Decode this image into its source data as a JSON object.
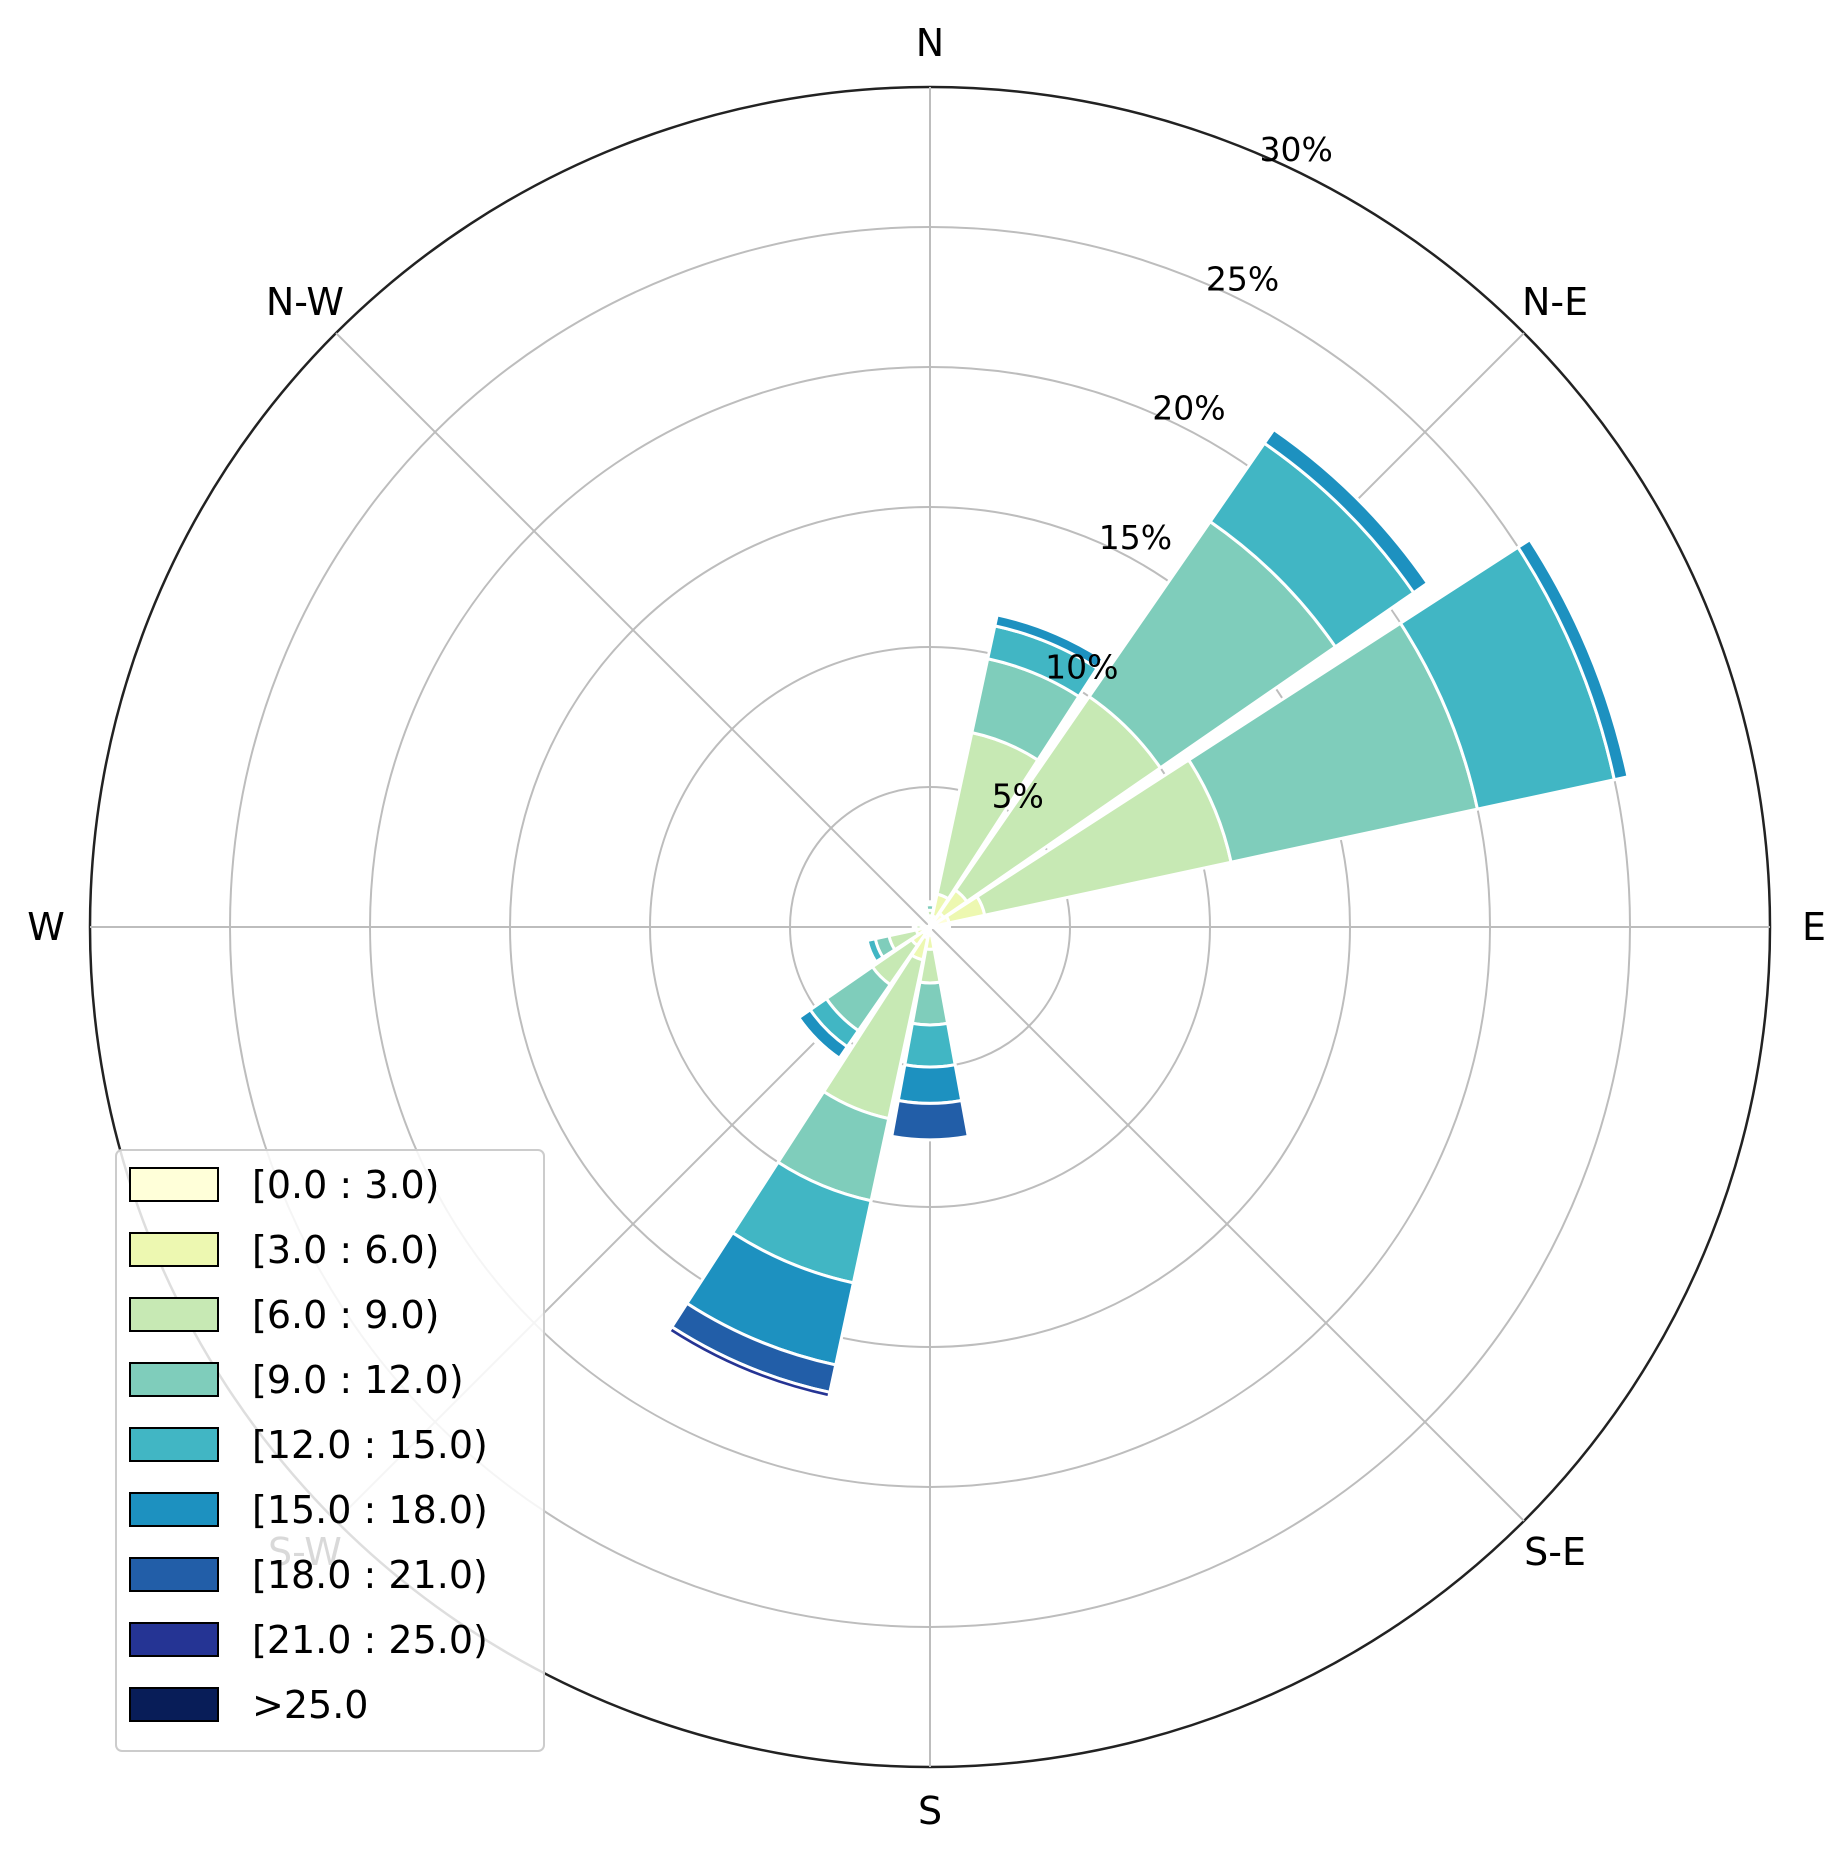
{
  "chart_data": {
    "type": "windrose",
    "radial_axis": {
      "unit": "%",
      "max": 30,
      "rings": [
        5,
        10,
        15,
        20,
        25,
        30
      ],
      "ring_labels": [
        "5%",
        "10%",
        "15%",
        "20%",
        "25%",
        "30%"
      ]
    },
    "direction_labels": [
      {
        "text": "N",
        "angle": 0
      },
      {
        "text": "N-E",
        "angle": 45
      },
      {
        "text": "E",
        "angle": 90
      },
      {
        "text": "S-E",
        "angle": 135
      },
      {
        "text": "S",
        "angle": 180
      },
      {
        "text": "S-W",
        "angle": 225
      },
      {
        "text": "W",
        "angle": 270
      },
      {
        "text": "N-W",
        "angle": 315
      }
    ],
    "legend": {
      "position": "lower-left",
      "bins": [
        {
          "label": "[0.0 : 3.0)",
          "color": "#ffffd9"
        },
        {
          "label": "[3.0 : 6.0)",
          "color": "#edf8b1"
        },
        {
          "label": "[6.0 : 9.0)",
          "color": "#c7e9b4"
        },
        {
          "label": "[9.0 : 12.0)",
          "color": "#7fcdbb"
        },
        {
          "label": "[12.0 : 15.0)",
          "color": "#41b6c4"
        },
        {
          "label": "[15.0 : 18.0)",
          "color": "#1d91c0"
        },
        {
          "label": "[18.0 : 21.0)",
          "color": "#225ea8"
        },
        {
          "label": "[21.0 : 25.0)",
          "color": "#253494"
        },
        {
          "label": ">25.0",
          "color": "#081d58"
        }
      ]
    },
    "sector_width_deg": 22.5,
    "sectors": [
      {
        "direction_deg": 0,
        "cumulative": [
          0.2,
          0.4,
          0.6,
          0.8,
          0.9,
          0.9,
          0.9,
          0.9,
          0.9
        ]
      },
      {
        "direction_deg": 22.5,
        "cumulative": [
          0.4,
          1.2,
          7.1,
          9.8,
          11.0,
          11.4,
          11.4,
          11.4,
          11.4
        ]
      },
      {
        "direction_deg": 45,
        "cumulative": [
          0.6,
          1.6,
          10.0,
          17.6,
          21.0,
          21.6,
          21.6,
          21.6,
          21.6
        ]
      },
      {
        "direction_deg": 67.5,
        "cumulative": [
          0.7,
          2.0,
          11.0,
          20.0,
          25.0,
          25.5,
          25.5,
          25.5,
          25.5
        ]
      },
      {
        "direction_deg": 90,
        "cumulative": [
          0.4,
          0.5,
          0.6,
          0.7,
          0.7,
          0.7,
          0.7,
          0.7,
          0.7
        ]
      },
      {
        "direction_deg": 112.5,
        "cumulative": [
          0,
          0,
          0,
          0,
          0,
          0,
          0,
          0,
          0
        ]
      },
      {
        "direction_deg": 135,
        "cumulative": [
          0,
          0,
          0,
          0,
          0,
          0,
          0,
          0,
          0
        ]
      },
      {
        "direction_deg": 157.5,
        "cumulative": [
          0,
          0,
          0,
          0,
          0,
          0,
          0,
          0,
          0
        ]
      },
      {
        "direction_deg": 180,
        "cumulative": [
          0.3,
          0.8,
          2.0,
          3.5,
          5.0,
          6.3,
          7.6,
          7.6,
          7.6
        ]
      },
      {
        "direction_deg": 202.5,
        "cumulative": [
          0.4,
          1.2,
          7.0,
          10.0,
          13.0,
          16.0,
          17.0,
          17.2,
          17.2
        ]
      },
      {
        "direction_deg": 225,
        "cumulative": [
          0.3,
          0.8,
          2.5,
          4.5,
          5.2,
          5.7,
          5.8,
          5.8,
          5.8
        ]
      },
      {
        "direction_deg": 247.5,
        "cumulative": [
          0.2,
          0.5,
          1.5,
          2.0,
          2.3,
          2.4,
          2.4,
          2.4,
          2.4
        ]
      },
      {
        "direction_deg": 270,
        "cumulative": [
          0.1,
          0.3,
          0.5,
          0.6,
          0.6,
          0.6,
          0.6,
          0.6,
          0.6
        ]
      },
      {
        "direction_deg": 292.5,
        "cumulative": [
          0,
          0,
          0,
          0,
          0,
          0,
          0,
          0,
          0
        ]
      },
      {
        "direction_deg": 315,
        "cumulative": [
          0,
          0,
          0,
          0,
          0,
          0,
          0,
          0,
          0
        ]
      },
      {
        "direction_deg": 337.5,
        "cumulative": [
          0,
          0,
          0,
          0,
          0,
          0,
          0,
          0,
          0
        ]
      }
    ]
  }
}
